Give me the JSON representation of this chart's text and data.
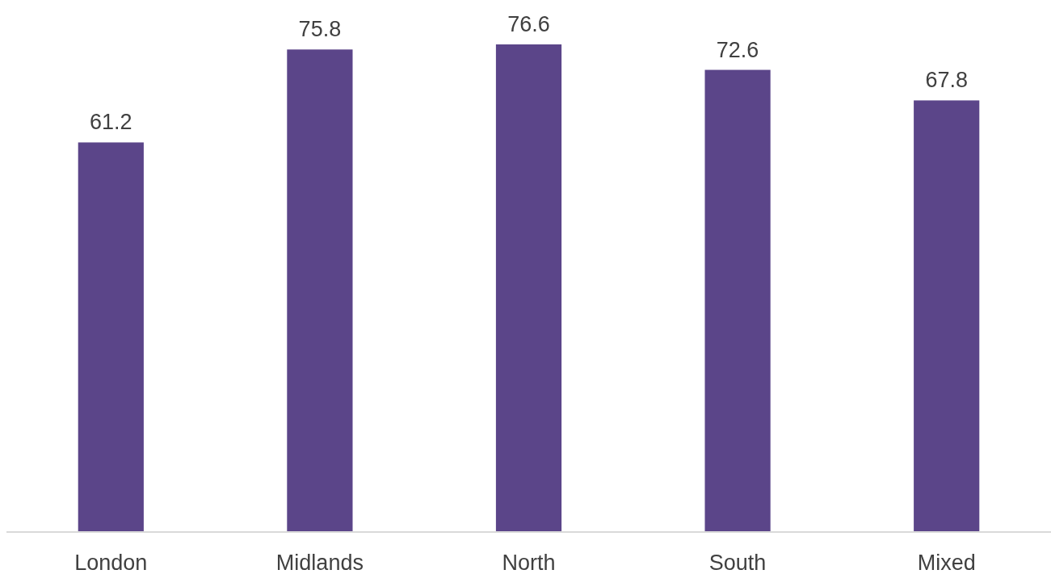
{
  "chart_data": {
    "type": "bar",
    "categories": [
      "London",
      "Midlands",
      "North",
      "South",
      "Mixed"
    ],
    "values": [
      61.2,
      75.8,
      76.6,
      72.6,
      67.8
    ],
    "color": "#5b4589",
    "data_labels": true
  }
}
